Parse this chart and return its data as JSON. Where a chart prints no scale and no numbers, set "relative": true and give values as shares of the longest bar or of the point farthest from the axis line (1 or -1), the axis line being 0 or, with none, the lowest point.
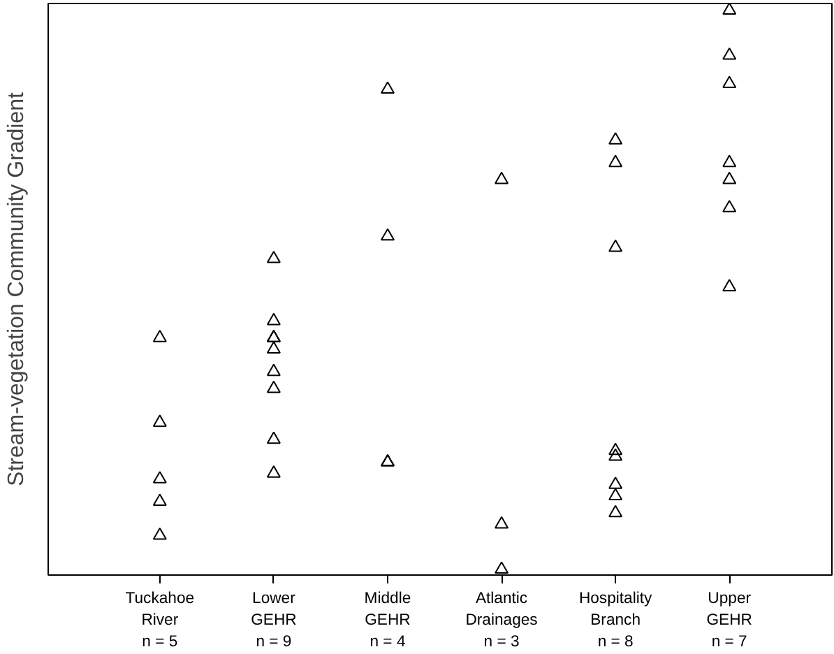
{
  "chart_data": {
    "type": "scatter",
    "ylabel": "Stream-vegetation Community Gradient",
    "relative": true,
    "marker": "triangle",
    "categories": [
      "Tuckahoe\nRiver\nn = 5",
      "Lower\nGEHR\nn = 9",
      "Middle\nGEHR\nn = 4",
      "Atlantic\nDrainages\nn = 3",
      "Hospitality\nBranch\nn = 8",
      "Upper\nGEHR\nn = 7"
    ],
    "series": [
      {
        "color": "#000000",
        "x": [
          "Tuckahoe\nRiver\nn = 5",
          "Tuckahoe\nRiver\nn = 5",
          "Tuckahoe\nRiver\nn = 5",
          "Tuckahoe\nRiver\nn = 5",
          "Tuckahoe\nRiver\nn = 5",
          "Lower\nGEHR\nn = 9",
          "Lower\nGEHR\nn = 9",
          "Lower\nGEHR\nn = 9",
          "Lower\nGEHR\nn = 9",
          "Lower\nGEHR\nn = 9",
          "Lower\nGEHR\nn = 9",
          "Lower\nGEHR\nn = 9",
          "Lower\nGEHR\nn = 9",
          "Lower\nGEHR\nn = 9",
          "Middle\nGEHR\nn = 4",
          "Middle\nGEHR\nn = 4",
          "Middle\nGEHR\nn = 4",
          "Middle\nGEHR\nn = 4",
          "Atlantic\nDrainages\nn = 3",
          "Atlantic\nDrainages\nn = 3",
          "Atlantic\nDrainages\nn = 3",
          "Hospitality\nBranch\nn = 8",
          "Hospitality\nBranch\nn = 8",
          "Hospitality\nBranch\nn = 8",
          "Hospitality\nBranch\nn = 8",
          "Hospitality\nBranch\nn = 8",
          "Hospitality\nBranch\nn = 8",
          "Hospitality\nBranch\nn = 8",
          "Hospitality\nBranch\nn = 8",
          "Upper\nGEHR\nn = 7",
          "Upper\nGEHR\nn = 7",
          "Upper\nGEHR\nn = 7",
          "Upper\nGEHR\nn = 7",
          "Upper\nGEHR\nn = 7",
          "Upper\nGEHR\nn = 7",
          "Upper\nGEHR\nn = 7"
        ],
        "values": [
          0.42,
          0.27,
          0.17,
          0.13,
          0.07,
          0.56,
          0.45,
          0.42,
          0.42,
          0.4,
          0.36,
          0.33,
          0.24,
          0.18,
          0.86,
          0.6,
          0.2,
          0.2,
          0.7,
          0.09,
          0.01,
          0.77,
          0.73,
          0.58,
          0.22,
          0.21,
          0.16,
          0.14,
          0.11,
          1.0,
          0.92,
          0.87,
          0.73,
          0.7,
          0.65,
          0.51
        ]
      }
    ]
  }
}
